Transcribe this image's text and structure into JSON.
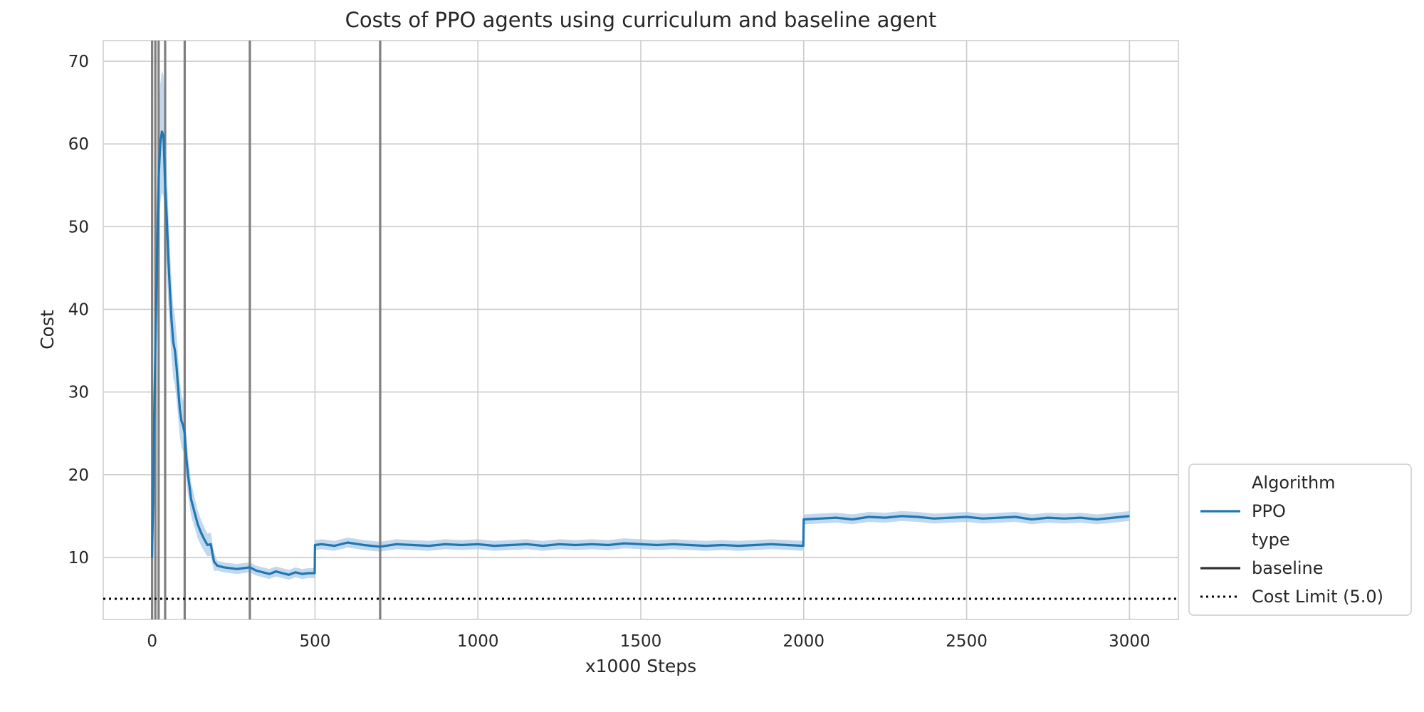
{
  "chart_data": {
    "type": "line",
    "title": "Costs of PPO agents using curriculum and baseline agent",
    "xlabel": "x1000 Steps",
    "ylabel": "Cost",
    "xlim": [
      -150,
      3150
    ],
    "ylim": [
      2.5,
      72.5
    ],
    "x_ticks": [
      0,
      500,
      1000,
      1500,
      2000,
      2500,
      3000
    ],
    "y_ticks": [
      10,
      20,
      30,
      40,
      50,
      60,
      70
    ],
    "grid": true,
    "legend_position": "lower-right",
    "series": [
      {
        "name": "PPO",
        "type": "baseline",
        "color": "#1f77b4",
        "band_color": "#a6c8e6",
        "points": [
          [
            0,
            10
          ],
          [
            3,
            17
          ],
          [
            6,
            26
          ],
          [
            10,
            35
          ],
          [
            15,
            46
          ],
          [
            20,
            56
          ],
          [
            25,
            60
          ],
          [
            30,
            61.5
          ],
          [
            35,
            61
          ],
          [
            40,
            55
          ],
          [
            45,
            51
          ],
          [
            50,
            46
          ],
          [
            55,
            42
          ],
          [
            60,
            38.5
          ],
          [
            65,
            36
          ],
          [
            70,
            35
          ],
          [
            75,
            33
          ],
          [
            80,
            30.5
          ],
          [
            85,
            28
          ],
          [
            90,
            26.5
          ],
          [
            95,
            26
          ],
          [
            100,
            25
          ],
          [
            105,
            22
          ],
          [
            110,
            20
          ],
          [
            115,
            18.5
          ],
          [
            120,
            17
          ],
          [
            130,
            15.5
          ],
          [
            140,
            14
          ],
          [
            150,
            13
          ],
          [
            160,
            12.2
          ],
          [
            170,
            11.5
          ],
          [
            180,
            11.6
          ],
          [
            185,
            10.5
          ],
          [
            190,
            9.5
          ],
          [
            200,
            9
          ],
          [
            220,
            8.8
          ],
          [
            240,
            8.7
          ],
          [
            260,
            8.6
          ],
          [
            280,
            8.7
          ],
          [
            300,
            8.8
          ],
          [
            320,
            8.4
          ],
          [
            340,
            8.2
          ],
          [
            360,
            8.0
          ],
          [
            380,
            8.3
          ],
          [
            400,
            8.1
          ],
          [
            420,
            7.9
          ],
          [
            440,
            8.2
          ],
          [
            460,
            8.0
          ],
          [
            480,
            8.1
          ],
          [
            499,
            8.1
          ],
          [
            500,
            11.5
          ],
          [
            520,
            11.6
          ],
          [
            560,
            11.4
          ],
          [
            600,
            11.8
          ],
          [
            650,
            11.5
          ],
          [
            700,
            11.3
          ],
          [
            750,
            11.6
          ],
          [
            800,
            11.5
          ],
          [
            850,
            11.4
          ],
          [
            900,
            11.6
          ],
          [
            950,
            11.5
          ],
          [
            1000,
            11.6
          ],
          [
            1050,
            11.4
          ],
          [
            1100,
            11.5
          ],
          [
            1150,
            11.6
          ],
          [
            1200,
            11.4
          ],
          [
            1250,
            11.6
          ],
          [
            1300,
            11.5
          ],
          [
            1350,
            11.6
          ],
          [
            1400,
            11.5
          ],
          [
            1450,
            11.7
          ],
          [
            1500,
            11.6
          ],
          [
            1550,
            11.5
          ],
          [
            1600,
            11.6
          ],
          [
            1650,
            11.5
          ],
          [
            1700,
            11.4
          ],
          [
            1750,
            11.5
          ],
          [
            1800,
            11.4
          ],
          [
            1850,
            11.5
          ],
          [
            1900,
            11.6
          ],
          [
            1950,
            11.5
          ],
          [
            1999,
            11.4
          ],
          [
            2000,
            14.6
          ],
          [
            2050,
            14.7
          ],
          [
            2100,
            14.8
          ],
          [
            2150,
            14.6
          ],
          [
            2200,
            14.9
          ],
          [
            2250,
            14.8
          ],
          [
            2300,
            15.0
          ],
          [
            2350,
            14.9
          ],
          [
            2400,
            14.7
          ],
          [
            2450,
            14.8
          ],
          [
            2500,
            14.9
          ],
          [
            2550,
            14.7
          ],
          [
            2600,
            14.8
          ],
          [
            2650,
            14.9
          ],
          [
            2700,
            14.6
          ],
          [
            2750,
            14.8
          ],
          [
            2800,
            14.7
          ],
          [
            2850,
            14.8
          ],
          [
            2900,
            14.6
          ],
          [
            2950,
            14.8
          ],
          [
            3000,
            15.0
          ]
        ]
      }
    ],
    "vertical_lines": [
      0,
      10,
      20,
      40,
      100,
      300,
      700
    ],
    "cost_limit": 5.0,
    "legend": [
      {
        "label": "Algorithm",
        "style": "header"
      },
      {
        "label": "PPO",
        "style": "line",
        "color": "#1f77b4"
      },
      {
        "label": "type",
        "style": "header"
      },
      {
        "label": "baseline",
        "style": "line",
        "color": "#333333"
      },
      {
        "label": "Cost Limit (5.0)",
        "style": "dotted",
        "color": "#000000"
      }
    ]
  }
}
